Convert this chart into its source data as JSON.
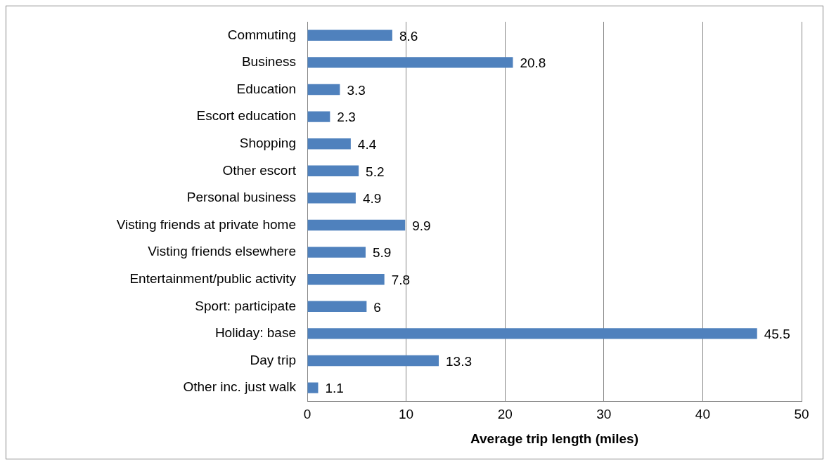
{
  "chart_data": {
    "type": "bar",
    "orientation": "horizontal",
    "xlabel": "Average trip length (miles)",
    "categories": [
      "Commuting",
      "Business",
      "Education",
      "Escort education",
      "Shopping",
      "Other escort",
      "Personal business",
      "Visting friends at private home",
      "Visting friends elsewhere",
      "Entertainment/public activity",
      "Sport: participate",
      "Holiday: base",
      "Day trip",
      "Other inc. just walk"
    ],
    "values": [
      8.6,
      20.8,
      3.3,
      2.3,
      4.4,
      5.2,
      4.9,
      9.9,
      5.9,
      7.8,
      6,
      45.5,
      13.3,
      1.1
    ],
    "color": "#4f81bd",
    "xlim": [
      0,
      50
    ],
    "xticks": [
      0,
      10,
      20,
      30,
      40,
      50
    ],
    "grid": "x",
    "data_labels": true,
    "legend": false
  }
}
